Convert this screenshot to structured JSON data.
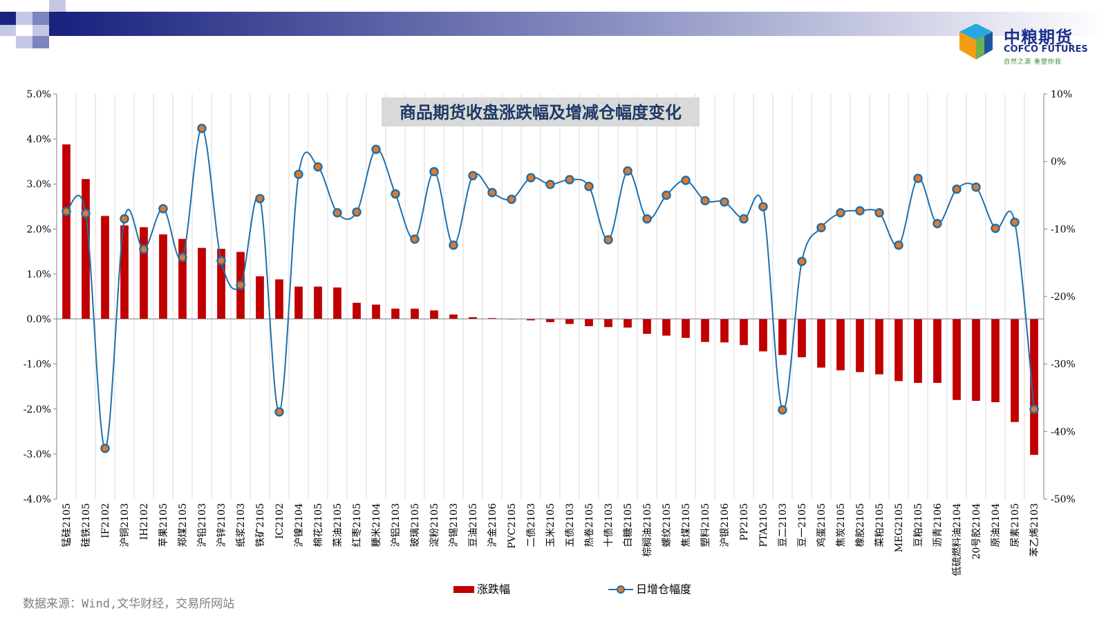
{
  "logo": {
    "name_cn": "中粮期货",
    "name_en": "COFCO FUTURES",
    "slogan": "自然之源 重塑你我"
  },
  "source_note": "数据来源：Wind,文华财经，交易所网站",
  "colors": {
    "bar": "#c00000",
    "line": "#1f6fa8",
    "marker_fill": "#e87722",
    "marker_edge": "#1f6fa8",
    "title_bg": "#d9d9d9",
    "title_text": "#1f3864"
  },
  "chart_data": {
    "type": "bar",
    "title": "商品期货收盘涨跌幅及增减仓幅度变化",
    "categories": [
      "锰硅2105",
      "硅铁2105",
      "IF2102",
      "沪铜2103",
      "IH2102",
      "苹果2105",
      "郑煤2105",
      "沪铅2103",
      "沪锌2103",
      "纸浆2103",
      "铁矿2105",
      "IC2102",
      "沪镍2104",
      "棉花2105",
      "菜油2105",
      "红枣2105",
      "粳米2104",
      "沪铝2103",
      "玻璃2105",
      "淀粉2105",
      "沪锡2103",
      "豆油2105",
      "沪金2106",
      "PVC2105",
      "二债2103",
      "玉米2105",
      "五债2103",
      "热卷2105",
      "十债2103",
      "白糖2105",
      "棕榈油2105",
      "螺纹2105",
      "焦煤2105",
      "塑料2105",
      "沪银2106",
      "PP2105",
      "PTA2105",
      "豆二2103",
      "豆一2105",
      "鸡蛋2105",
      "焦炭2105",
      "橡胶2105",
      "菜粕2105",
      "MEG2105",
      "豆粕2105",
      "沥青2106",
      "低硫燃料油2104",
      "20号胶2104",
      "原油2104",
      "尿素2105",
      "苯乙烯2103"
    ],
    "series": [
      {
        "name": "涨跌幅",
        "type": "bar",
        "axis": "left",
        "values": [
          3.88,
          3.11,
          2.29,
          2.08,
          2.04,
          1.88,
          1.78,
          1.58,
          1.56,
          1.49,
          0.95,
          0.88,
          0.72,
          0.72,
          0.7,
          0.36,
          0.32,
          0.23,
          0.23,
          0.19,
          0.1,
          0.04,
          0.02,
          0.0,
          -0.03,
          -0.07,
          -0.11,
          -0.16,
          -0.18,
          -0.19,
          -0.33,
          -0.37,
          -0.42,
          -0.51,
          -0.52,
          -0.58,
          -0.72,
          -0.8,
          -0.85,
          -1.08,
          -1.14,
          -1.18,
          -1.23,
          -1.38,
          -1.42,
          -1.42,
          -1.8,
          -1.82,
          -1.85,
          -2.29,
          -3.02
        ]
      },
      {
        "name": "日增仓幅度",
        "type": "line",
        "axis": "right",
        "values": [
          -7.4,
          -7.7,
          -42.5,
          -8.5,
          -13.0,
          -7.0,
          -14.2,
          4.9,
          -14.7,
          -18.3,
          -5.5,
          -37.1,
          -1.9,
          -0.8,
          -7.6,
          -7.5,
          1.8,
          -4.8,
          -11.5,
          -1.5,
          -12.4,
          -2.1,
          -4.6,
          -5.6,
          -2.4,
          -3.4,
          -2.7,
          -3.7,
          -11.6,
          -1.4,
          -8.5,
          -5.0,
          -2.8,
          -5.8,
          -6.0,
          -8.5,
          -6.7,
          -36.8,
          -14.8,
          -9.8,
          -7.6,
          -7.3,
          -7.6,
          -12.4,
          -2.5,
          -9.2,
          -4.1,
          -3.8,
          -9.9,
          -9.0,
          -36.7
        ]
      }
    ],
    "y_left": {
      "min": -4,
      "max": 5,
      "ticks": [
        "-4.0%",
        "-3.0%",
        "-2.0%",
        "-1.0%",
        "0.0%",
        "1.0%",
        "2.0%",
        "3.0%",
        "4.0%",
        "5.0%"
      ]
    },
    "y_right": {
      "min": -50,
      "max": 10,
      "ticks": [
        "-50%",
        "-40%",
        "-30%",
        "-20%",
        "-10%",
        "0%",
        "10%"
      ]
    },
    "grid": "vertical",
    "legend_position": "bottom-center"
  }
}
